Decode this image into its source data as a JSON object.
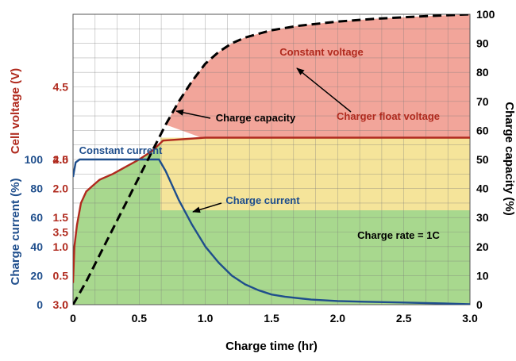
{
  "chart_data": {
    "type": "line",
    "xlabel": "Charge time (hr)",
    "xlim": [
      0,
      3.0
    ],
    "x_ticks": [
      "0",
      "0.5",
      "1.0",
      "1.5",
      "2.0",
      "2.5",
      "3.0"
    ],
    "y_axes": {
      "voltage": {
        "label": "Cell voltage (V)",
        "ticks": [
          "3.0",
          "3.5",
          "4.0",
          "4.5"
        ],
        "ylim": [
          3.0,
          5.0
        ],
        "color": "#b02a1e"
      },
      "current": {
        "label": "Charge current (%)",
        "ticks": [
          "0",
          "20",
          "40",
          "60",
          "80",
          "100"
        ],
        "ylim": [
          0,
          200
        ],
        "color": "#1f4e8c"
      },
      "left_scale": {
        "ticks": [
          "0",
          "0.5",
          "1.0",
          "1.5",
          "2.0",
          "2.5"
        ],
        "ylim": [
          0,
          5.0
        ],
        "color": "#b02a1e"
      },
      "capacity": {
        "label": "Charge capacity (%)",
        "ticks": [
          "0",
          "10",
          "20",
          "30",
          "40",
          "50",
          "60",
          "70",
          "80",
          "90",
          "100"
        ],
        "ylim": [
          0,
          100
        ],
        "color": "#000000"
      }
    },
    "series": [
      {
        "name": "Cell voltage",
        "axis": "voltage",
        "color": "#b02a1e",
        "x": [
          0,
          0.01,
          0.03,
          0.06,
          0.1,
          0.15,
          0.2,
          0.3,
          0.4,
          0.5,
          0.6,
          0.68,
          1.0,
          1.5,
          2.0,
          2.5,
          3.0
        ],
        "y": [
          3.15,
          3.4,
          3.55,
          3.7,
          3.78,
          3.82,
          3.86,
          3.9,
          3.95,
          4.0,
          4.06,
          4.13,
          4.15,
          4.15,
          4.15,
          4.15,
          4.15
        ]
      },
      {
        "name": "Charge current",
        "axis": "current",
        "color": "#1f4e8c",
        "x": [
          0,
          0.02,
          0.05,
          0.65,
          0.7,
          0.8,
          0.9,
          1.0,
          1.1,
          1.2,
          1.3,
          1.4,
          1.5,
          1.6,
          1.8,
          2.0,
          2.2,
          2.5,
          2.8,
          3.0
        ],
        "y": [
          88,
          98,
          100,
          100,
          92,
          72,
          55,
          40,
          29,
          20,
          14,
          10,
          7,
          5.5,
          3.5,
          2.5,
          2,
          1.5,
          0.8,
          0.3
        ]
      },
      {
        "name": "Charge capacity",
        "axis": "capacity",
        "color": "#000000",
        "x": [
          0,
          0.1,
          0.2,
          0.3,
          0.4,
          0.5,
          0.6,
          0.7,
          0.8,
          0.9,
          1.0,
          1.1,
          1.2,
          1.3,
          1.5,
          1.7,
          2.0,
          2.3,
          2.6,
          3.0
        ],
        "y": [
          0,
          8,
          17,
          26,
          35,
          44,
          53,
          62,
          70,
          77,
          83,
          87,
          90,
          92,
          94.5,
          96,
          97.5,
          98.5,
          99.2,
          100
        ]
      }
    ],
    "regions": [
      {
        "label": "constant-current",
        "color": "#a8d88e"
      },
      {
        "label": "float-voltage",
        "color": "#f5e49a"
      },
      {
        "label": "constant-voltage",
        "color": "#f2a59a"
      }
    ],
    "annotations": {
      "constant_voltage": "Constant voltage",
      "charger_float_voltage": "Charger float voltage",
      "charge_capacity": "Charge capacity",
      "constant_current": "Constant current",
      "charge_current": "Charge current",
      "charge_rate": "Charge rate = 1C"
    },
    "grid": true
  }
}
